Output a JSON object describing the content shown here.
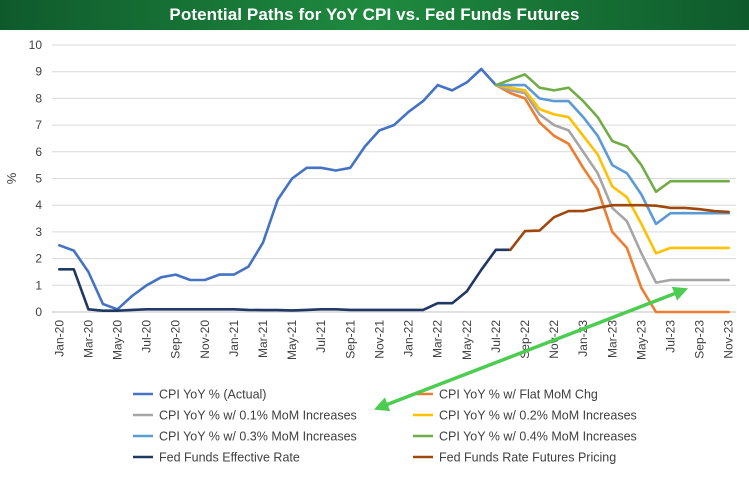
{
  "title": "Potential Paths for YoY CPI vs. Fed Funds Futures",
  "chart_data": {
    "type": "line",
    "ylabel": "%",
    "ylim": [
      0,
      10
    ],
    "yticks": [
      "0",
      "1",
      "2",
      "3",
      "4",
      "5",
      "6",
      "7",
      "8",
      "9",
      "10"
    ],
    "x_tick_labels": [
      "Jan-20",
      "Mar-20",
      "May-20",
      "Jul-20",
      "Sep-20",
      "Nov-20",
      "Jan-21",
      "Mar-21",
      "May-21",
      "Jul-21",
      "Sep-21",
      "Nov-21",
      "Jan-22",
      "Mar-22",
      "May-22",
      "Jul-22",
      "Sep-22",
      "Nov-22",
      "Jan-23",
      "Mar-23",
      "May-23",
      "Jul-23",
      "Sep-23",
      "Nov-23"
    ],
    "x_months": [
      "Jan-20",
      "Feb-20",
      "Mar-20",
      "Apr-20",
      "May-20",
      "Jun-20",
      "Jul-20",
      "Aug-20",
      "Sep-20",
      "Oct-20",
      "Nov-20",
      "Dec-20",
      "Jan-21",
      "Feb-21",
      "Mar-21",
      "Apr-21",
      "May-21",
      "Jun-21",
      "Jul-21",
      "Aug-21",
      "Sep-21",
      "Oct-21",
      "Nov-21",
      "Dec-21",
      "Jan-22",
      "Feb-22",
      "Mar-22",
      "Apr-22",
      "May-22",
      "Jun-22",
      "Jul-22",
      "Aug-22",
      "Sep-22",
      "Oct-22",
      "Nov-22",
      "Dec-22",
      "Jan-23",
      "Feb-23",
      "Mar-23",
      "Apr-23",
      "May-23",
      "Jun-23",
      "Jul-23",
      "Aug-23",
      "Sep-23",
      "Oct-23",
      "Nov-23"
    ],
    "grid": true,
    "legend_position": "bottom",
    "series": [
      {
        "name": "CPI YoY % (Actual)",
        "color": "#4472c4",
        "start": "Jan-20",
        "values": [
          2.5,
          2.3,
          1.5,
          0.3,
          0.1,
          0.6,
          1.0,
          1.3,
          1.4,
          1.2,
          1.2,
          1.4,
          1.4,
          1.7,
          2.6,
          4.2,
          5.0,
          5.4,
          5.4,
          5.3,
          5.4,
          6.2,
          6.8,
          7.0,
          7.5,
          7.9,
          8.5,
          8.3,
          8.6,
          9.1,
          8.5
        ]
      },
      {
        "name": "CPI YoY % w/ Flat MoM Chg",
        "color": "#ed7d31",
        "start": "Jul-22",
        "values": [
          8.5,
          8.2,
          8.0,
          7.1,
          6.6,
          6.3,
          5.4,
          4.6,
          3.0,
          2.4,
          0.9,
          0.0,
          0.0,
          0.0,
          0.0,
          0.0,
          0.0
        ]
      },
      {
        "name": "CPI YoY % w/ 0.1% MoM Increases",
        "color": "#a5a5a5",
        "start": "Jul-22",
        "values": [
          8.5,
          8.3,
          8.2,
          7.4,
          7.0,
          6.8,
          6.0,
          5.2,
          3.9,
          3.4,
          2.2,
          1.1,
          1.2,
          1.2,
          1.2,
          1.2,
          1.2
        ]
      },
      {
        "name": "CPI YoY % w/ 0.2% MoM Increases",
        "color": "#ffc000",
        "start": "Jul-22",
        "values": [
          8.5,
          8.4,
          8.3,
          7.6,
          7.4,
          7.3,
          6.6,
          5.9,
          4.7,
          4.3,
          3.3,
          2.2,
          2.4,
          2.4,
          2.4,
          2.4,
          2.4
        ]
      },
      {
        "name": "CPI YoY % w/ 0.3% MoM Increases",
        "color": "#5b9bd5",
        "start": "Jul-22",
        "values": [
          8.5,
          8.5,
          8.5,
          8.0,
          7.9,
          7.9,
          7.3,
          6.6,
          5.5,
          5.2,
          4.4,
          3.3,
          3.7,
          3.7,
          3.7,
          3.7,
          3.7
        ]
      },
      {
        "name": "CPI YoY % w/ 0.4% MoM Increases",
        "color": "#70ad47",
        "start": "Jul-22",
        "values": [
          8.5,
          8.7,
          8.9,
          8.4,
          8.3,
          8.4,
          7.9,
          7.3,
          6.4,
          6.2,
          5.5,
          4.5,
          4.9,
          4.9,
          4.9,
          4.9,
          4.9
        ]
      },
      {
        "name": "Fed Funds Effective Rate",
        "color": "#203864",
        "start": "Jan-20",
        "values": [
          1.6,
          1.6,
          0.1,
          0.05,
          0.05,
          0.08,
          0.1,
          0.1,
          0.1,
          0.1,
          0.1,
          0.1,
          0.1,
          0.08,
          0.07,
          0.07,
          0.06,
          0.08,
          0.1,
          0.1,
          0.08,
          0.08,
          0.08,
          0.08,
          0.08,
          0.08,
          0.33,
          0.33,
          0.77,
          1.58,
          2.33,
          2.33
        ]
      },
      {
        "name": "Fed Funds Rate Futures Pricing",
        "color": "#9e480e",
        "start": "Aug-22",
        "values": [
          2.33,
          3.03,
          3.05,
          3.55,
          3.78,
          3.78,
          3.9,
          4.0,
          4.0,
          4.0,
          3.98,
          3.9,
          3.9,
          3.85,
          3.78,
          3.75
        ]
      }
    ],
    "arrow_color": "#4ccc50"
  }
}
